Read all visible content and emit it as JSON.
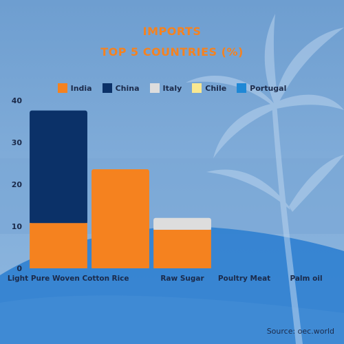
{
  "header": {
    "title_line1": "IMPORTS",
    "title_line2": "TOP 5 COUNTRIES (%)"
  },
  "legend": [
    {
      "label": "India",
      "color": "#f5821f"
    },
    {
      "label": "China",
      "color": "#0b3168"
    },
    {
      "label": "Italy",
      "color": "#dddddd"
    },
    {
      "label": "Chile",
      "color": "#fae890"
    },
    {
      "label": "Portugal",
      "color": "#1e88d6"
    }
  ],
  "source": "Source: oec.world",
  "chart_data": {
    "type": "bar",
    "stacked": true,
    "categories": [
      "Light Pure Woven Cotton",
      "Rice",
      "Raw Sugar",
      "Poultry Meat",
      "Palm oil"
    ],
    "series": [
      {
        "name": "India",
        "values": [
          10.8,
          23.6,
          9.2,
          0,
          0
        ]
      },
      {
        "name": "China",
        "values": [
          26.8,
          0,
          0,
          0,
          0
        ]
      },
      {
        "name": "Italy",
        "values": [
          0,
          0,
          2.8,
          0,
          0
        ]
      },
      {
        "name": "Chile",
        "values": [
          0,
          0,
          0,
          0,
          0
        ]
      },
      {
        "name": "Portugal",
        "values": [
          0,
          0,
          0,
          0,
          0
        ]
      }
    ],
    "yticks": [
      0,
      10,
      20,
      30,
      40
    ],
    "ylim": [
      0,
      40
    ],
    "grid": false,
    "legend_position": "top"
  }
}
